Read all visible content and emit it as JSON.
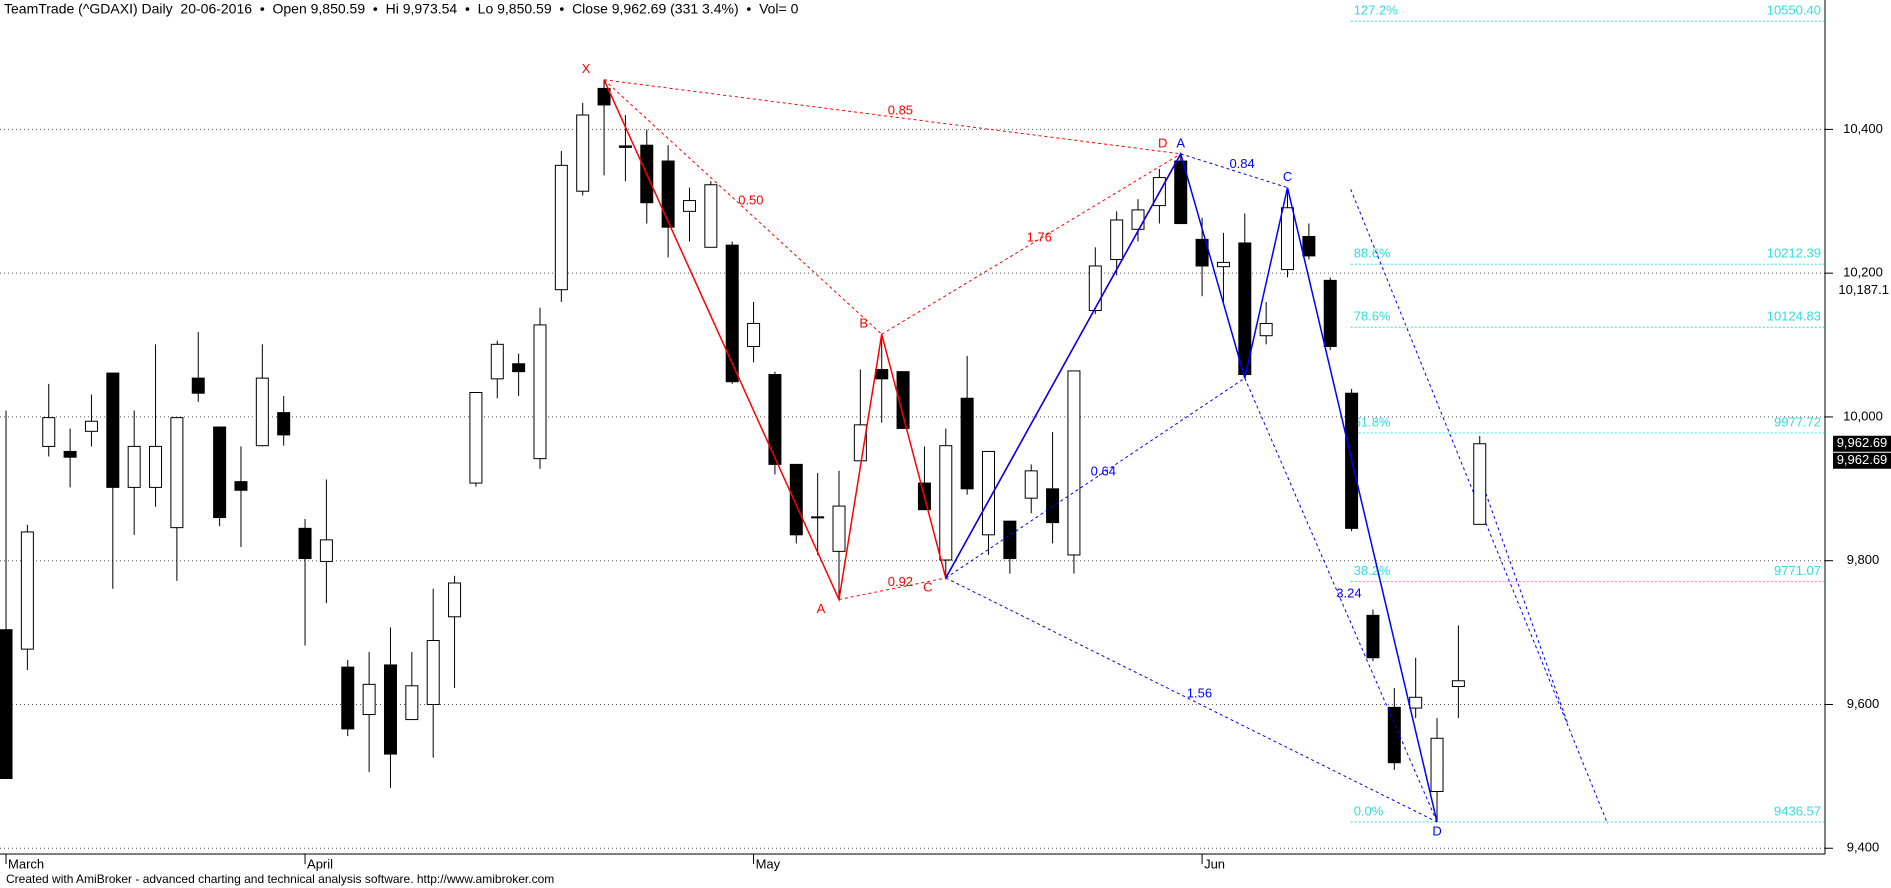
{
  "header": "TeamTrade (^GDAXI) Daily  20-06-2016  •  Open 9,850.59  •  Hi 9,973.54  •  Lo 9,850.59  •  Close 9,962.69 (331 3.4%)  •  Vol= 0",
  "footer": "Created with AmiBroker - advanced charting and technical analysis software. http://www.amibroker.com",
  "chart_data": {
    "type": "candlestick",
    "categories": [
      "March",
      null,
      null,
      null,
      null,
      null,
      null,
      null,
      null,
      null,
      null,
      null,
      null,
      null,
      "April",
      null,
      null,
      null,
      null,
      null,
      null,
      null,
      null,
      null,
      null,
      null,
      null,
      null,
      null,
      null,
      null,
      null,
      null,
      null,
      null,
      "May",
      null,
      null,
      null,
      null,
      null,
      null,
      null,
      null,
      null,
      null,
      null,
      null,
      null,
      null,
      null,
      null,
      null,
      null,
      null,
      null,
      "Jun",
      null,
      null,
      null,
      null,
      null,
      null,
      null,
      null,
      null,
      null,
      null,
      null,
      null
    ],
    "open": [
      9704,
      9677,
      9959,
      9952,
      9980,
      10061,
      9902,
      9902,
      9846,
      10054,
      9986,
      9910,
      9960,
      10006,
      9845,
      9799,
      9652,
      9586,
      9655,
      9579,
      9600,
      9722,
      9908,
      10053,
      10074,
      9942,
      10177,
      10314,
      10457,
      10377,
      10378,
      10356,
      10286,
      10236,
      10239,
      10098,
      10059,
      9934,
      9861,
      9813,
      9939,
      10066,
      10063,
      9908,
      9801,
      10026,
      9836,
      9855,
      9887,
      9900,
      9808,
      10148,
      10219,
      10261,
      10294,
      10356,
      10247,
      10209,
      10242,
      10113,
      10205,
      10251,
      10190,
      10033,
      9724,
      9596,
      9595,
      9479,
      9625,
      9850.59
    ],
    "high": [
      10009,
      9850,
      10046,
      9984,
      10031,
      10061,
      10009,
      10101,
      9999,
      10118,
      9986,
      9959,
      10101,
      10029,
      9858,
      9913,
      9662,
      9673,
      9707,
      9673,
      9761,
      9779,
      10034,
      10106,
      10088,
      10152,
      10370,
      10437,
      10469,
      10420,
      10400,
      10378,
      10319,
      10328,
      10244,
      10160,
      10063,
      9934,
      9922,
      9925,
      10066,
      10115,
      10063,
      9959,
      9984,
      10085,
      9952,
      9855,
      9934,
      9979,
      10064,
      10236,
      10286,
      10303,
      10345,
      10366,
      10277,
      10256,
      10283,
      10160,
      10319,
      10269,
      10194,
      10039,
      9732,
      9623,
      9665,
      9581,
      9710,
      9973.54
    ],
    "low": [
      9497,
      9648,
      9945,
      9902,
      9959,
      9761,
      9836,
      9875,
      9772,
      10021,
      9848,
      9819,
      9959,
      9960,
      9682,
      9741,
      9556,
      9506,
      9484,
      9579,
      9526,
      9623,
      9903,
      10026,
      10029,
      9928,
      10160,
      10308,
      10336,
      10328,
      10269,
      10222,
      10244,
      10236,
      10046,
      10076,
      9920,
      9824,
      9808,
      9746,
      9939,
      9992,
      9984,
      9871,
      9776,
      9892,
      9808,
      9782,
      9866,
      9824,
      9782,
      10143,
      10197,
      10244,
      10269,
      10269,
      10168,
      10160,
      10054,
      10101,
      10194,
      10219,
      10093,
      9841,
      9660,
      9509,
      9581,
      9436.57,
      9581,
      9850.59
    ],
    "close": [
      9497,
      9840,
      9999,
      9944,
      9994,
      9902,
      9959,
      9959,
      9999,
      10033,
      9860,
      9898,
      10054,
      9975,
      9803,
      9829,
      9566,
      9628,
      9531,
      9626,
      9689,
      9769,
      10034,
      10101,
      10063,
      10128,
      10350,
      10420,
      10434,
      10375,
      10298,
      10264,
      10301,
      10323,
      10049,
      10130,
      9934,
      9836,
      9860,
      9876,
      9989,
      10053,
      9984,
      9871,
      9960,
      9900,
      9952,
      9803,
      9925,
      9853,
      10064,
      10210,
      10274,
      10288,
      10333,
      10269,
      10210,
      10215,
      10059,
      10130,
      10291,
      10224,
      10098,
      9845,
      9665,
      9519,
      9610,
      9553,
      9633,
      9962.69
    ],
    "up_color": "#ffffff",
    "down_color": "#000000",
    "ylim": [
      9392,
      10580
    ],
    "yticks": [
      {
        "value": 9400,
        "label": "9,400"
      },
      {
        "value": 9600,
        "label": "9,600"
      },
      {
        "value": 9800,
        "label": "9,800"
      },
      {
        "value": 10000,
        "label": "10,000"
      },
      {
        "value": 10200,
        "label": "10,200"
      },
      {
        "value": 10400,
        "label": "10,400"
      }
    ],
    "grid": true,
    "patterns": [
      {
        "color": "#ff0000",
        "labels": [
          "X",
          "A",
          "B",
          "C",
          "D"
        ],
        "x": [
          28,
          39,
          41,
          44,
          55
        ],
        "values": [
          10469,
          9746,
          10115,
          9776,
          10366
        ],
        "ratios": [
          "0.50",
          "0.85",
          "0.92",
          "1.76"
        ]
      },
      {
        "color": "#0000ff",
        "labels": [
          null,
          "A",
          null,
          "C",
          "D"
        ],
        "x": [
          44,
          55,
          58,
          60,
          67
        ],
        "values": [
          9776,
          10366,
          10054,
          10319,
          9436.57
        ],
        "ratios": [
          "0.84",
          "0.64",
          "1.56",
          "3.24"
        ]
      }
    ],
    "fib": {
      "color": "#33dddd",
      "labels": [
        "127.2%",
        "88.6%",
        "78.6%",
        "61.8%",
        "38.2%",
        "0.0%"
      ],
      "values": [
        10550.4,
        10212.39,
        10124.83,
        9977.72,
        9771.07,
        9436.57
      ],
      "value_labels": [
        "10550.40",
        "10212.39",
        "10124.83",
        "9977.72",
        "9771.07",
        "9436.57"
      ]
    },
    "price_labels": [
      {
        "value": 10187.1,
        "label": "10,187.1"
      },
      {
        "value": 9962.69,
        "label": "9,962.69"
      }
    ]
  }
}
